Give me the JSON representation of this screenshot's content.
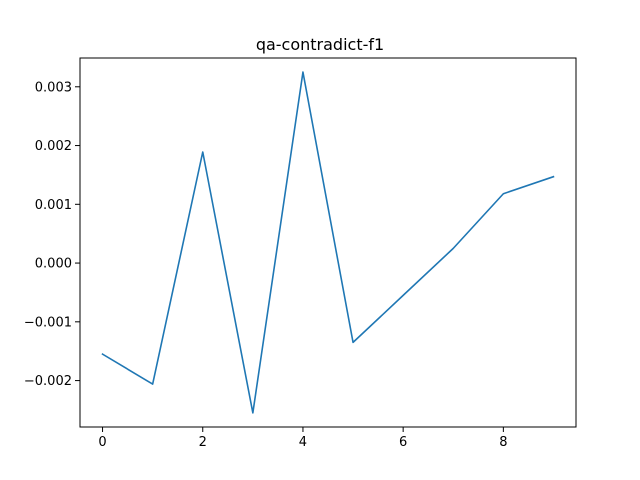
{
  "chart_data": {
    "type": "line",
    "title": "qa-contradict-f1",
    "xlabel": "",
    "ylabel": "",
    "x": [
      0,
      1,
      2,
      3,
      4,
      5,
      6,
      7,
      8,
      9
    ],
    "series": [
      {
        "values": [
          -0.00155,
          -0.00206,
          0.00189,
          -0.00255,
          0.00325,
          -0.00135,
          -0.00055,
          0.00025,
          0.00118,
          0.00147
        ],
        "color": "#1f77b4"
      }
    ],
    "xlim": [
      -0.45,
      9.45
    ],
    "ylim": [
      -0.00279,
      0.00349
    ],
    "x_ticks": [
      0,
      2,
      4,
      6,
      8
    ],
    "x_tick_labels": [
      "0",
      "2",
      "4",
      "6",
      "8"
    ],
    "y_ticks": [
      -0.002,
      -0.001,
      0.0,
      0.001,
      0.002,
      0.003
    ],
    "y_tick_labels": [
      "−0.002",
      "−0.001",
      "0.000",
      "0.001",
      "0.002",
      "0.003"
    ],
    "grid": false,
    "legend": "none"
  }
}
